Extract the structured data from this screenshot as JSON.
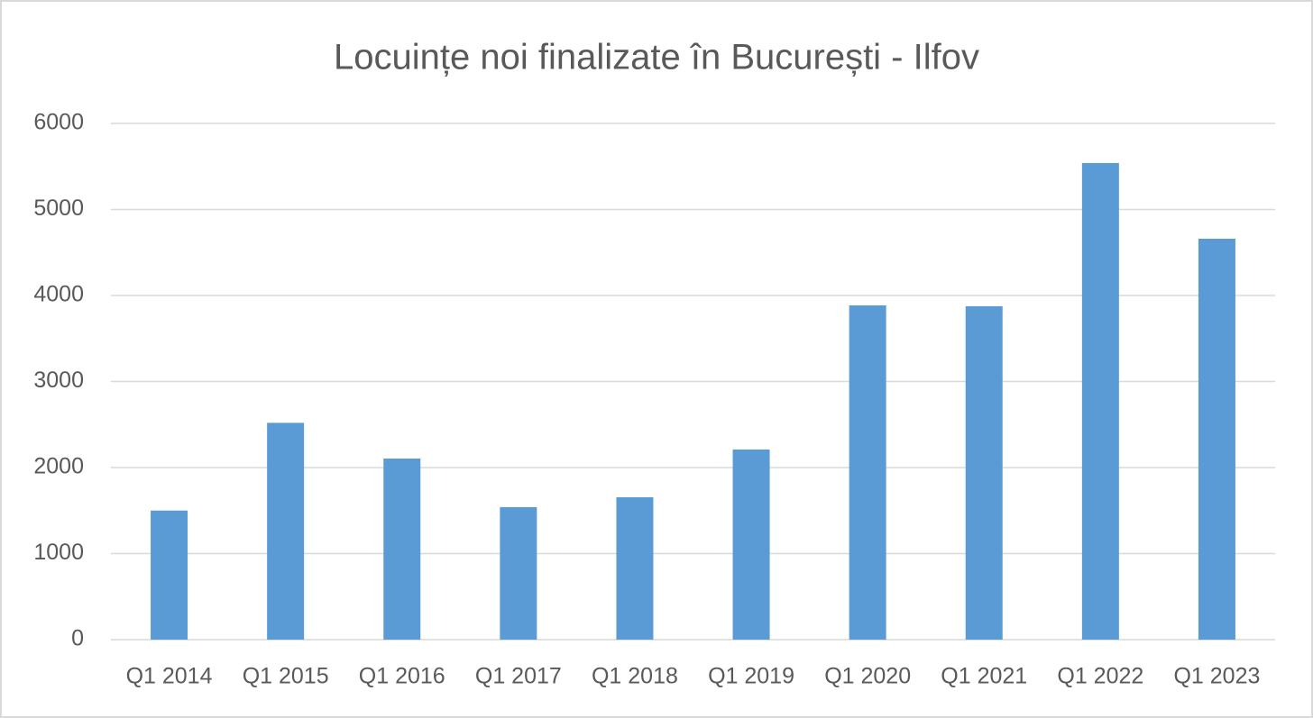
{
  "chart_data": {
    "type": "bar",
    "title": "Locuințe noi finalizate în București - Ilfov",
    "categories": [
      "Q1 2014",
      "Q1 2015",
      "Q1 2016",
      "Q1 2017",
      "Q1 2018",
      "Q1 2019",
      "Q1 2020",
      "Q1 2021",
      "Q1 2022",
      "Q1 2023"
    ],
    "values": [
      1500,
      2520,
      2105,
      1540,
      1655,
      2210,
      3885,
      3875,
      5540,
      4660
    ],
    "color": "#5b9bd5",
    "ylim": [
      0,
      6000
    ],
    "yticks": [
      0,
      1000,
      2000,
      3000,
      4000,
      5000,
      6000
    ],
    "grid": true
  }
}
